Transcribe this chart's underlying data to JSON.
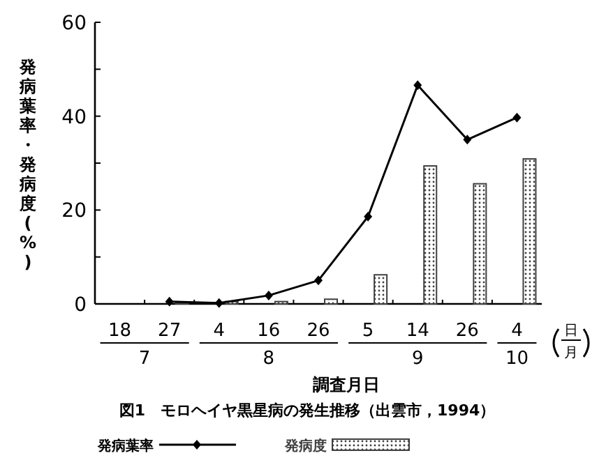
{
  "chart_data": {
    "type": "bar",
    "title": "図1　モロヘイヤ黒星病の発生推移（出雲市，1994）",
    "xlabel": "調査月日",
    "ylabel": "発病葉率・発病度(%)",
    "categories": [
      "18",
      "27",
      "4",
      "16",
      "26",
      "5",
      "14",
      "26",
      "4"
    ],
    "series": [
      {
        "name": "発病葉率",
        "type": "line",
        "color": "#000000",
        "marker": "diamond",
        "line_style": "solid",
        "values": [
          null,
          0.5,
          0.2,
          1.8,
          5.0,
          18.6,
          46.6,
          35.0,
          39.7
        ]
      },
      {
        "name": "発病度",
        "color": "#404040",
        "values": [
          null,
          0.3,
          0.5,
          0.5,
          1.0,
          6.2,
          29.4,
          25.6,
          30.9
        ]
      }
    ],
    "ylim": [
      0,
      60
    ],
    "yticks": [
      0,
      {
        "value": 10,
        "label": null
      },
      20,
      {
        "value": 30,
        "label": null
      },
      40,
      {
        "value": 50,
        "label": null
      },
      60
    ],
    "annotations": [
      "7",
      "8",
      "9",
      "10",
      "日",
      "月"
    ],
    "legend": "bottom",
    "grid": false
  }
}
